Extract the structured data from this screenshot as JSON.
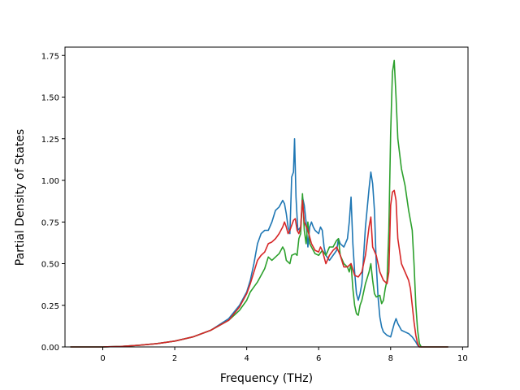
{
  "chart_data": {
    "type": "line",
    "xlabel": "Frequency (THz)",
    "ylabel": "Partial Density of States",
    "xlim": [
      -1.05,
      10.15
    ],
    "ylim": [
      0.0,
      1.8
    ],
    "xticks": [
      0,
      2,
      4,
      6,
      8,
      10
    ],
    "yticks": [
      0.0,
      0.25,
      0.5,
      0.75,
      1.0,
      1.25,
      1.5,
      1.75
    ],
    "xtick_labels": [
      "0",
      "2",
      "4",
      "6",
      "8",
      "10"
    ],
    "ytick_labels": [
      "0.00",
      "0.25",
      "0.50",
      "0.75",
      "1.00",
      "1.25",
      "1.50",
      "1.75"
    ],
    "grid": false,
    "legend": "none",
    "series": [
      {
        "color": "#1f77b4",
        "points": [
          [
            -0.9,
            0.0
          ],
          [
            0.0,
            0.0
          ],
          [
            0.5,
            0.003
          ],
          [
            1.0,
            0.01
          ],
          [
            1.5,
            0.02
          ],
          [
            2.0,
            0.035
          ],
          [
            2.5,
            0.06
          ],
          [
            3.0,
            0.1
          ],
          [
            3.5,
            0.17
          ],
          [
            3.8,
            0.25
          ],
          [
            4.0,
            0.33
          ],
          [
            4.1,
            0.4
          ],
          [
            4.2,
            0.5
          ],
          [
            4.3,
            0.62
          ],
          [
            4.4,
            0.68
          ],
          [
            4.5,
            0.7
          ],
          [
            4.6,
            0.7
          ],
          [
            4.7,
            0.75
          ],
          [
            4.8,
            0.82
          ],
          [
            4.9,
            0.84
          ],
          [
            5.0,
            0.88
          ],
          [
            5.05,
            0.86
          ],
          [
            5.1,
            0.8
          ],
          [
            5.15,
            0.72
          ],
          [
            5.2,
            0.68
          ],
          [
            5.25,
            1.02
          ],
          [
            5.3,
            1.05
          ],
          [
            5.33,
            1.25
          ],
          [
            5.37,
            0.9
          ],
          [
            5.42,
            0.7
          ],
          [
            5.5,
            0.72
          ],
          [
            5.55,
            0.9
          ],
          [
            5.6,
            0.85
          ],
          [
            5.65,
            0.75
          ],
          [
            5.7,
            0.6
          ],
          [
            5.75,
            0.72
          ],
          [
            5.8,
            0.75
          ],
          [
            5.85,
            0.72
          ],
          [
            5.9,
            0.7
          ],
          [
            6.0,
            0.68
          ],
          [
            6.05,
            0.72
          ],
          [
            6.1,
            0.7
          ],
          [
            6.15,
            0.6
          ],
          [
            6.2,
            0.55
          ],
          [
            6.3,
            0.52
          ],
          [
            6.4,
            0.55
          ],
          [
            6.5,
            0.58
          ],
          [
            6.55,
            0.65
          ],
          [
            6.6,
            0.62
          ],
          [
            6.7,
            0.6
          ],
          [
            6.8,
            0.65
          ],
          [
            6.85,
            0.75
          ],
          [
            6.9,
            0.9
          ],
          [
            6.95,
            0.62
          ],
          [
            7.0,
            0.45
          ],
          [
            7.05,
            0.32
          ],
          [
            7.1,
            0.28
          ],
          [
            7.15,
            0.32
          ],
          [
            7.2,
            0.38
          ],
          [
            7.3,
            0.72
          ],
          [
            7.4,
            0.95
          ],
          [
            7.45,
            1.05
          ],
          [
            7.5,
            0.98
          ],
          [
            7.55,
            0.82
          ],
          [
            7.6,
            0.5
          ],
          [
            7.65,
            0.3
          ],
          [
            7.7,
            0.18
          ],
          [
            7.75,
            0.12
          ],
          [
            7.8,
            0.09
          ],
          [
            7.9,
            0.07
          ],
          [
            8.0,
            0.06
          ],
          [
            8.05,
            0.1
          ],
          [
            8.1,
            0.14
          ],
          [
            8.15,
            0.17
          ],
          [
            8.2,
            0.14
          ],
          [
            8.3,
            0.1
          ],
          [
            8.4,
            0.09
          ],
          [
            8.5,
            0.08
          ],
          [
            8.6,
            0.06
          ],
          [
            8.7,
            0.03
          ],
          [
            8.75,
            0.01
          ],
          [
            8.8,
            0.0
          ],
          [
            9.6,
            0.0
          ]
        ]
      },
      {
        "color": "#2ca02c",
        "points": [
          [
            -0.9,
            0.0
          ],
          [
            0.0,
            0.0
          ],
          [
            0.5,
            0.003
          ],
          [
            1.0,
            0.01
          ],
          [
            1.5,
            0.02
          ],
          [
            2.0,
            0.035
          ],
          [
            2.5,
            0.06
          ],
          [
            3.0,
            0.1
          ],
          [
            3.5,
            0.16
          ],
          [
            3.8,
            0.22
          ],
          [
            4.0,
            0.28
          ],
          [
            4.1,
            0.33
          ],
          [
            4.2,
            0.36
          ],
          [
            4.3,
            0.39
          ],
          [
            4.4,
            0.43
          ],
          [
            4.5,
            0.47
          ],
          [
            4.6,
            0.54
          ],
          [
            4.7,
            0.52
          ],
          [
            4.8,
            0.54
          ],
          [
            4.9,
            0.56
          ],
          [
            5.0,
            0.6
          ],
          [
            5.05,
            0.58
          ],
          [
            5.1,
            0.52
          ],
          [
            5.2,
            0.5
          ],
          [
            5.25,
            0.55
          ],
          [
            5.35,
            0.56
          ],
          [
            5.4,
            0.55
          ],
          [
            5.45,
            0.65
          ],
          [
            5.5,
            0.68
          ],
          [
            5.55,
            0.92
          ],
          [
            5.6,
            0.7
          ],
          [
            5.65,
            0.62
          ],
          [
            5.7,
            0.75
          ],
          [
            5.75,
            0.62
          ],
          [
            5.8,
            0.6
          ],
          [
            5.9,
            0.56
          ],
          [
            6.0,
            0.55
          ],
          [
            6.1,
            0.58
          ],
          [
            6.2,
            0.55
          ],
          [
            6.3,
            0.6
          ],
          [
            6.4,
            0.6
          ],
          [
            6.5,
            0.64
          ],
          [
            6.55,
            0.65
          ],
          [
            6.6,
            0.55
          ],
          [
            6.7,
            0.5
          ],
          [
            6.8,
            0.48
          ],
          [
            6.85,
            0.45
          ],
          [
            6.9,
            0.5
          ],
          [
            6.95,
            0.35
          ],
          [
            7.0,
            0.25
          ],
          [
            7.05,
            0.2
          ],
          [
            7.1,
            0.19
          ],
          [
            7.15,
            0.25
          ],
          [
            7.2,
            0.28
          ],
          [
            7.3,
            0.38
          ],
          [
            7.4,
            0.45
          ],
          [
            7.45,
            0.5
          ],
          [
            7.5,
            0.4
          ],
          [
            7.55,
            0.32
          ],
          [
            7.6,
            0.3
          ],
          [
            7.7,
            0.31
          ],
          [
            7.75,
            0.26
          ],
          [
            7.8,
            0.28
          ],
          [
            7.85,
            0.35
          ],
          [
            7.9,
            0.4
          ],
          [
            7.95,
            0.7
          ],
          [
            8.0,
            1.28
          ],
          [
            8.05,
            1.65
          ],
          [
            8.1,
            1.72
          ],
          [
            8.15,
            1.5
          ],
          [
            8.2,
            1.25
          ],
          [
            8.3,
            1.07
          ],
          [
            8.4,
            0.97
          ],
          [
            8.5,
            0.82
          ],
          [
            8.6,
            0.7
          ],
          [
            8.65,
            0.5
          ],
          [
            8.7,
            0.25
          ],
          [
            8.75,
            0.1
          ],
          [
            8.8,
            0.02
          ],
          [
            8.85,
            0.0
          ],
          [
            9.6,
            0.0
          ]
        ]
      },
      {
        "color": "#d62728",
        "points": [
          [
            -0.9,
            0.0
          ],
          [
            0.0,
            0.0
          ],
          [
            0.5,
            0.003
          ],
          [
            1.0,
            0.01
          ],
          [
            1.5,
            0.02
          ],
          [
            2.0,
            0.035
          ],
          [
            2.5,
            0.06
          ],
          [
            3.0,
            0.1
          ],
          [
            3.5,
            0.16
          ],
          [
            3.8,
            0.24
          ],
          [
            4.0,
            0.32
          ],
          [
            4.1,
            0.38
          ],
          [
            4.2,
            0.45
          ],
          [
            4.3,
            0.52
          ],
          [
            4.4,
            0.55
          ],
          [
            4.5,
            0.57
          ],
          [
            4.6,
            0.62
          ],
          [
            4.7,
            0.63
          ],
          [
            4.8,
            0.65
          ],
          [
            4.9,
            0.68
          ],
          [
            5.0,
            0.72
          ],
          [
            5.05,
            0.75
          ],
          [
            5.1,
            0.72
          ],
          [
            5.15,
            0.68
          ],
          [
            5.2,
            0.7
          ],
          [
            5.3,
            0.76
          ],
          [
            5.35,
            0.77
          ],
          [
            5.4,
            0.7
          ],
          [
            5.45,
            0.68
          ],
          [
            5.5,
            0.72
          ],
          [
            5.55,
            0.88
          ],
          [
            5.6,
            0.75
          ],
          [
            5.7,
            0.7
          ],
          [
            5.8,
            0.62
          ],
          [
            5.9,
            0.58
          ],
          [
            6.0,
            0.57
          ],
          [
            6.05,
            0.6
          ],
          [
            6.1,
            0.58
          ],
          [
            6.2,
            0.5
          ],
          [
            6.3,
            0.55
          ],
          [
            6.4,
            0.58
          ],
          [
            6.5,
            0.6
          ],
          [
            6.6,
            0.55
          ],
          [
            6.7,
            0.48
          ],
          [
            6.8,
            0.48
          ],
          [
            6.9,
            0.5
          ],
          [
            7.0,
            0.43
          ],
          [
            7.1,
            0.42
          ],
          [
            7.2,
            0.45
          ],
          [
            7.3,
            0.55
          ],
          [
            7.4,
            0.72
          ],
          [
            7.45,
            0.78
          ],
          [
            7.5,
            0.6
          ],
          [
            7.6,
            0.55
          ],
          [
            7.7,
            0.45
          ],
          [
            7.8,
            0.4
          ],
          [
            7.9,
            0.38
          ],
          [
            7.95,
            0.45
          ],
          [
            8.0,
            0.85
          ],
          [
            8.05,
            0.93
          ],
          [
            8.1,
            0.94
          ],
          [
            8.15,
            0.88
          ],
          [
            8.2,
            0.65
          ],
          [
            8.3,
            0.5
          ],
          [
            8.4,
            0.45
          ],
          [
            8.5,
            0.4
          ],
          [
            8.55,
            0.35
          ],
          [
            8.6,
            0.25
          ],
          [
            8.65,
            0.15
          ],
          [
            8.7,
            0.07
          ],
          [
            8.75,
            0.02
          ],
          [
            8.8,
            0.0
          ],
          [
            9.6,
            0.0
          ]
        ]
      }
    ]
  }
}
